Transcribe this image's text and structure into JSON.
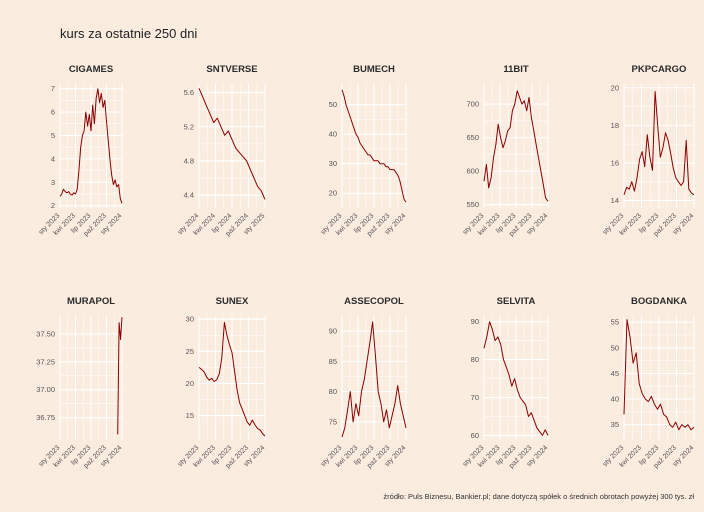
{
  "title": "kurs za ostatnie 250 dni",
  "caption": "źródło: Puls Biznesu, Bankier.pl; dane dotyczą spółek o średnich obrotach powyżej 300 tys. zł",
  "colors": {
    "background": "#fbece0",
    "line": "#8b0000",
    "grid": "#ffffff"
  },
  "chart_data": [
    {
      "type": "line",
      "title": "CIGAMES",
      "ylim": [
        1.9,
        7.2
      ],
      "yticks": [
        2,
        3,
        4,
        5,
        6,
        7
      ],
      "ytick_labels": [
        "2",
        "3",
        "4",
        "5",
        "6",
        "7"
      ],
      "xticks": [
        "sty 2023",
        "kwi 2023",
        "lip 2023",
        "paź 2023",
        "sty 2024"
      ],
      "series": [
        {
          "values": [
            2.4,
            2.5,
            2.7,
            2.6,
            2.55,
            2.6,
            2.5,
            2.45,
            2.55,
            2.5,
            2.7,
            3.5,
            4.5,
            5.0,
            5.2,
            6.0,
            5.4,
            5.9,
            5.2,
            6.3,
            5.5,
            6.6,
            7.0,
            6.4,
            6.8,
            6.2,
            6.5,
            5.6,
            4.8,
            4.0,
            3.3,
            2.9,
            3.1,
            2.8,
            2.9,
            2.3,
            2.1
          ]
        }
      ]
    },
    {
      "type": "line",
      "title": "SNTVERSE",
      "ylim": [
        4.25,
        5.7
      ],
      "yticks": [
        4.4,
        4.8,
        5.2,
        5.6
      ],
      "ytick_labels": [
        "4.4",
        "4.8",
        "5.2",
        "5.6"
      ],
      "xticks": [
        "sty 2024",
        "kwi 2024",
        "lip 2024",
        "paź 2024",
        "sty 2025"
      ],
      "series": [
        {
          "values": [
            5.65,
            5.55,
            5.45,
            5.35,
            5.25,
            5.3,
            5.2,
            5.1,
            5.15,
            5.05,
            4.95,
            4.9,
            4.85,
            4.8,
            4.7,
            4.6,
            4.5,
            4.45,
            4.35
          ]
        }
      ]
    },
    {
      "type": "line",
      "title": "BUMECH",
      "ylim": [
        15,
        57
      ],
      "yticks": [
        20,
        30,
        40,
        50
      ],
      "ytick_labels": [
        "20",
        "30",
        "40",
        "50"
      ],
      "xticks": [
        "sty 2023",
        "kwi 2023",
        "lip 2023",
        "paź 2023",
        "sty 2024"
      ],
      "series": [
        {
          "values": [
            55,
            53,
            50,
            48,
            46,
            44,
            42,
            40,
            39,
            37,
            36,
            35,
            34,
            33,
            33,
            32,
            31,
            31,
            31,
            30,
            30,
            30,
            29,
            29,
            28,
            28,
            28,
            27,
            26,
            24,
            21,
            18,
            17
          ]
        }
      ]
    },
    {
      "type": "line",
      "title": "11BIT",
      "ylim": [
        545,
        730
      ],
      "yticks": [
        550,
        600,
        650,
        700
      ],
      "ytick_labels": [
        "550",
        "600",
        "650",
        "700"
      ],
      "xticks": [
        "sty 2023",
        "kwi 2023",
        "lip 2023",
        "paź 2023",
        "sty 2024"
      ],
      "series": [
        {
          "values": [
            585,
            610,
            575,
            590,
            620,
            640,
            670,
            650,
            635,
            645,
            660,
            665,
            690,
            700,
            720,
            710,
            700,
            705,
            690,
            710,
            680,
            660,
            640,
            620,
            600,
            580,
            560,
            555
          ]
        }
      ]
    },
    {
      "type": "line",
      "title": "PKPCARGO",
      "ylim": [
        13.6,
        20.2
      ],
      "yticks": [
        14,
        16,
        18,
        20
      ],
      "ytick_labels": [
        "14",
        "16",
        "18",
        "20"
      ],
      "xticks": [
        "sty 2023",
        "kwi 2023",
        "lip 2023",
        "paź 2023",
        "sty 2024"
      ],
      "series": [
        {
          "values": [
            14.3,
            14.7,
            14.6,
            15.0,
            14.5,
            15.2,
            16.2,
            16.6,
            15.8,
            17.5,
            16.3,
            15.6,
            19.8,
            18.0,
            16.3,
            16.8,
            17.6,
            17.2,
            16.5,
            15.7,
            15.2,
            15.0,
            14.8,
            15.0,
            17.2,
            14.6,
            14.4,
            14.3
          ]
        }
      ]
    },
    {
      "type": "line",
      "title": "MURAPOL",
      "ylim": [
        36.55,
        37.66
      ],
      "yticks": [
        36.75,
        37.0,
        37.25,
        37.5
      ],
      "ytick_labels": [
        "36.75",
        "37.00",
        "37.25",
        "37.50"
      ],
      "xticks": [
        "sty 2023",
        "kwi 2023",
        "lip 2023",
        "paź 2023",
        "sty 2024"
      ],
      "series": [
        {
          "values": [
            36.6,
            37.6,
            37.45,
            37.65
          ]
        }
      ]
    },
    {
      "type": "line",
      "title": "SUNEX",
      "ylim": [
        11.2,
        30.5
      ],
      "yticks": [
        15,
        20,
        25,
        30
      ],
      "ytick_labels": [
        "15",
        "20",
        "25",
        "30"
      ],
      "xticks": [
        "sty 2023",
        "kwi 2023",
        "lip 2023",
        "paź 2023",
        "sty 2024"
      ],
      "series": [
        {
          "values": [
            22.5,
            22.2,
            21.8,
            21.0,
            20.5,
            20.8,
            20.3,
            20.6,
            21.5,
            24.0,
            29.5,
            27.5,
            26.0,
            24.8,
            22.0,
            19.0,
            17.0,
            16.0,
            15.0,
            14.0,
            13.5,
            14.3,
            13.6,
            13.0,
            12.8,
            12.2,
            11.8
          ]
        }
      ]
    },
    {
      "type": "line",
      "title": "ASSECOPOL",
      "ylim": [
        72,
        92.5
      ],
      "yticks": [
        75,
        80,
        85,
        90
      ],
      "ytick_labels": [
        "75",
        "80",
        "85",
        "90"
      ],
      "xticks": [
        "sty 2023",
        "kwi 2023",
        "lip 2023",
        "paź 2023",
        "sty 2024"
      ],
      "series": [
        {
          "values": [
            72.5,
            74.0,
            77.0,
            80.0,
            75.0,
            78.0,
            76.0,
            80.0,
            82.0,
            85.0,
            88.0,
            91.5,
            86.0,
            80.0,
            78.0,
            75.0,
            77.0,
            74.0,
            76.0,
            78.0,
            81.0,
            78.0,
            76.0,
            74.0
          ]
        }
      ]
    },
    {
      "type": "line",
      "title": "SELVITA",
      "ylim": [
        58.8,
        91.5
      ],
      "yticks": [
        60,
        70,
        80,
        90
      ],
      "ytick_labels": [
        "60",
        "70",
        "80",
        "90"
      ],
      "xticks": [
        "sty 2023",
        "kwi 2023",
        "lip 2023",
        "paź 2023",
        "sty 2024"
      ],
      "series": [
        {
          "values": [
            83.0,
            86.0,
            90.0,
            88.0,
            85.0,
            86.0,
            84.0,
            80.0,
            78.0,
            76.0,
            73.0,
            75.0,
            72.0,
            70.0,
            69.0,
            68.0,
            65.0,
            66.0,
            64.0,
            62.0,
            61.0,
            60.0,
            61.5,
            60.0
          ]
        }
      ]
    },
    {
      "type": "line",
      "title": "BOGDANKA",
      "ylim": [
        32,
        56.2
      ],
      "yticks": [
        35,
        40,
        45,
        50,
        55
      ],
      "ytick_labels": [
        "35",
        "40",
        "45",
        "50",
        "55"
      ],
      "xticks": [
        "sty 2023",
        "kwi 2023",
        "lip 2023",
        "paź 2023",
        "sty 2024"
      ],
      "series": [
        {
          "values": [
            37.0,
            55.5,
            52.0,
            47.0,
            49.0,
            43.0,
            41.0,
            40.0,
            39.5,
            40.5,
            39.0,
            38.0,
            39.0,
            37.0,
            36.5,
            35.0,
            34.5,
            35.5,
            34.0,
            35.0,
            34.5,
            35.0,
            34.0,
            34.5
          ]
        }
      ]
    }
  ]
}
